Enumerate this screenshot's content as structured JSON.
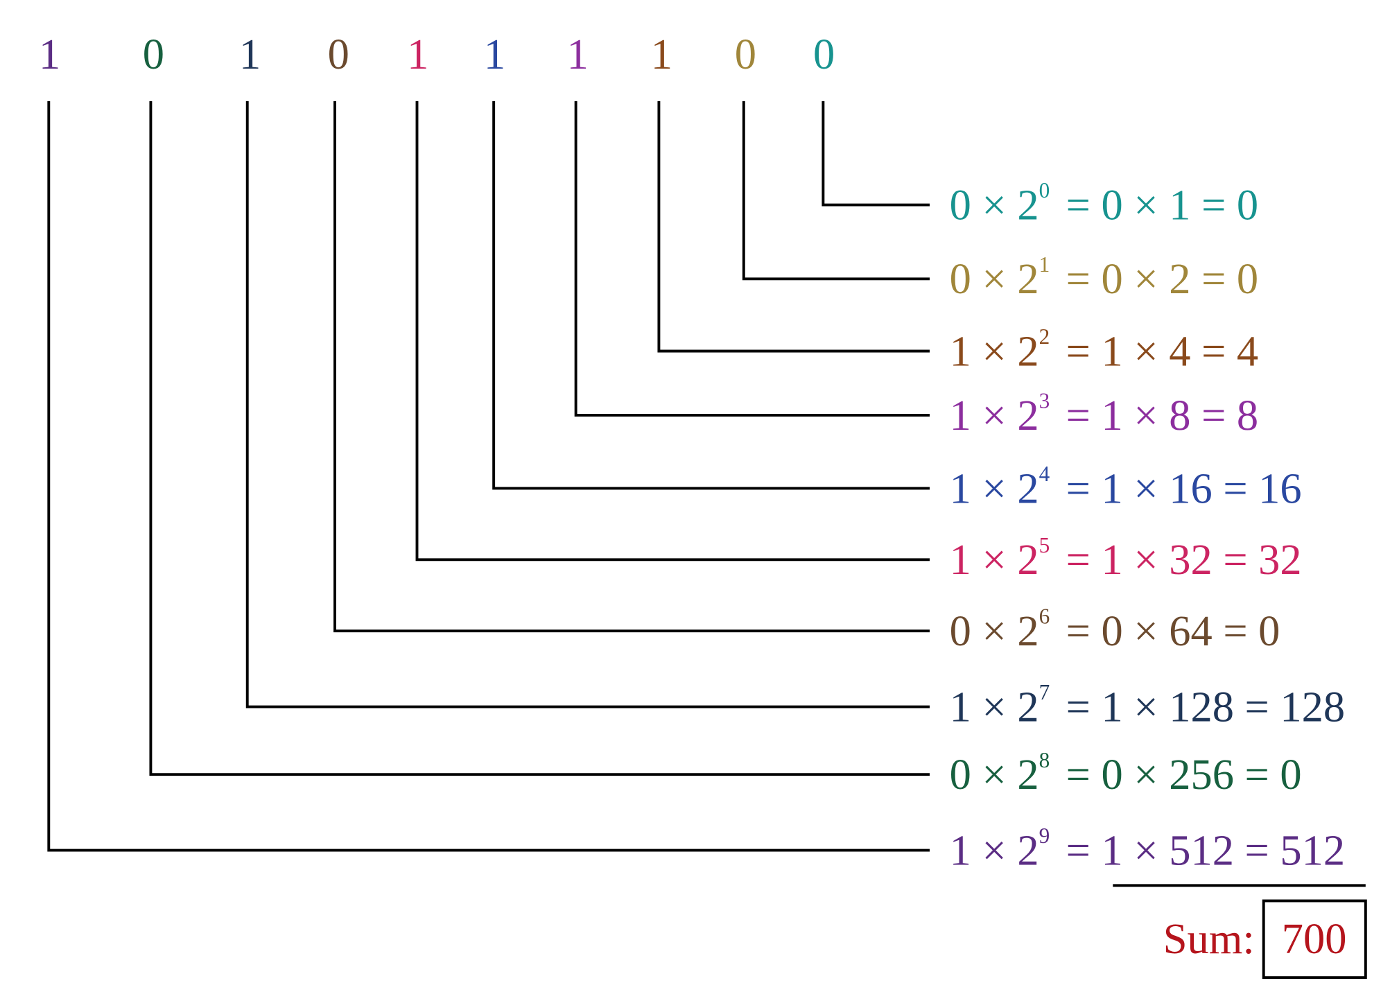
{
  "digits": [
    {
      "text": "1",
      "color": "#5b2d84"
    },
    {
      "text": "0",
      "color": "#17603f"
    },
    {
      "text": "1",
      "color": "#1f3658"
    },
    {
      "text": "0",
      "color": "#6b4a2e"
    },
    {
      "text": "1",
      "color": "#cc2462"
    },
    {
      "text": "1",
      "color": "#2a48a0"
    },
    {
      "text": "1",
      "color": "#8c2e9e"
    },
    {
      "text": "1",
      "color": "#8a4a1c"
    },
    {
      "text": "0",
      "color": "#a0863a"
    },
    {
      "text": "0",
      "color": "#17938f"
    }
  ],
  "rows": [
    {
      "lhs": "0 × 2",
      "exp": "0",
      "rhs": "= 0 × 1 = 0",
      "color": "#17938f"
    },
    {
      "lhs": "0 × 2",
      "exp": "1",
      "rhs": "= 0 × 2 = 0",
      "color": "#a0863a"
    },
    {
      "lhs": "1 × 2",
      "exp": "2",
      "rhs": "= 1 × 4 = 4",
      "color": "#8a4a1c"
    },
    {
      "lhs": "1 × 2",
      "exp": "3",
      "rhs": "= 1 × 8 = 8",
      "color": "#8c2e9e"
    },
    {
      "lhs": "1 × 2",
      "exp": "4",
      "rhs": "= 1 × 16 = 16",
      "color": "#2a48a0"
    },
    {
      "lhs": "1 × 2",
      "exp": "5",
      "rhs": "= 1 × 32 = 32",
      "color": "#cc2462"
    },
    {
      "lhs": "0 × 2",
      "exp": "6",
      "rhs": "= 0 × 64 = 0",
      "color": "#6b4a2e"
    },
    {
      "lhs": "1 × 2",
      "exp": "7",
      "rhs": "= 1 × 128 = 128",
      "color": "#1f3658"
    },
    {
      "lhs": "0 × 2",
      "exp": "8",
      "rhs": "= 0 × 256 = 0",
      "color": "#17603f"
    },
    {
      "lhs": "1 × 2",
      "exp": "9",
      "rhs": "= 1 × 512 = 512",
      "color": "#5b2d84"
    }
  ],
  "sum": {
    "label": "Sum:",
    "value": "700",
    "color": "#b5141c"
  }
}
